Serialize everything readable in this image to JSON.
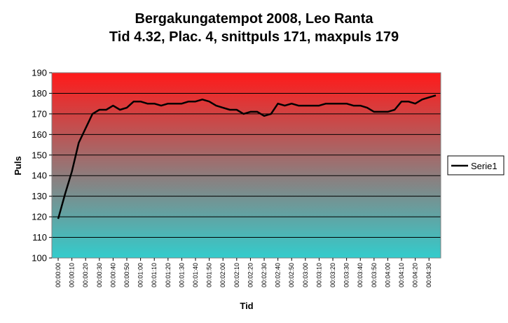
{
  "chart_data": {
    "type": "line",
    "title_line1": "Bergakungatempot 2008, Leo Ranta",
    "title_line2": "Tid 4.32, Plac. 4, snittpuls 171, maxpuls 179",
    "xlabel": "Tid",
    "ylabel": "Puls",
    "ylim": [
      100,
      190
    ],
    "yticks": [
      100,
      110,
      120,
      130,
      140,
      150,
      160,
      170,
      180,
      190
    ],
    "grid": true,
    "legend_position": "right",
    "x_ticks": [
      "00:00:00",
      "00:00:10",
      "00:00:20",
      "00:00:30",
      "00:00:40",
      "00:00:50",
      "00:01:00",
      "00:01:10",
      "00:01:20",
      "00:01:30",
      "00:01:40",
      "00:01:50",
      "00:02:00",
      "00:02:10",
      "00:02:20",
      "00:02:30",
      "00:02:40",
      "00:02:50",
      "00:03:00",
      "00:03:10",
      "00:03:20",
      "00:03:30",
      "00:03:40",
      "00:03:50",
      "00:04:00",
      "00:04:10",
      "00:04:20",
      "00:04:30"
    ],
    "x_interval_seconds": 5,
    "colors": {
      "plot_top": "#ff1a1a",
      "plot_bottom": "#33cccc",
      "line": "#000000"
    },
    "series": [
      {
        "name": "Serie1",
        "values": [
          119,
          131,
          142,
          156,
          163,
          170,
          172,
          172,
          174,
          172,
          173,
          176,
          176,
          175,
          175,
          174,
          175,
          175,
          175,
          176,
          176,
          177,
          176,
          174,
          173,
          172,
          172,
          170,
          171,
          171,
          169,
          170,
          175,
          174,
          175,
          174,
          174,
          174,
          174,
          175,
          175,
          175,
          175,
          174,
          174,
          173,
          171,
          171,
          171,
          172,
          176,
          176,
          175,
          177,
          178,
          179
        ]
      }
    ]
  }
}
